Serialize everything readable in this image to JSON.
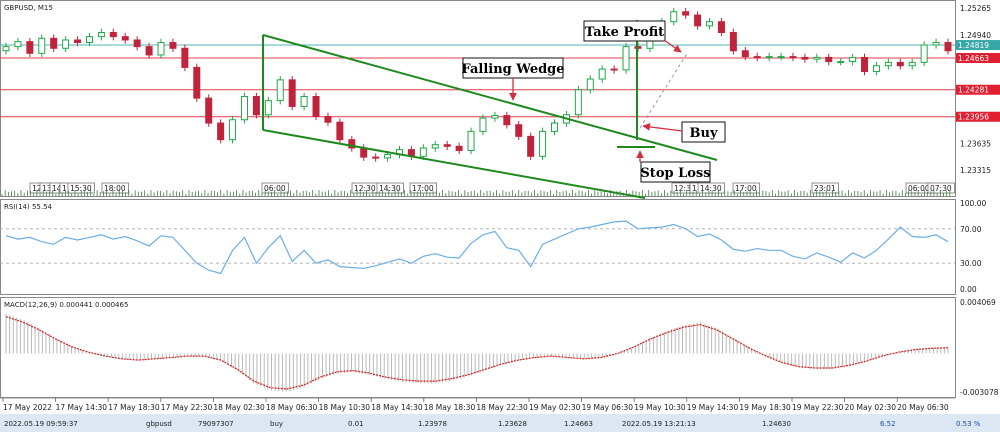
{
  "window": {
    "title": "GBPUSD, M15"
  },
  "colors": {
    "bull": "#20a848",
    "bear": "#c0243c",
    "wedge": "#1e8a1e",
    "level_red": "#e0404a",
    "level_teal": "#4fb7b7",
    "rsi_line": "#6aaee6",
    "macd_signal": "#d02020",
    "macd_hist": "#b9b9b9",
    "arrow": "#d03040",
    "tag_red": "#e02030",
    "tag_teal": "#37a7a7"
  },
  "price_axis": {
    "ticks": [
      "1.25265",
      "1.24940",
      "1.23635",
      "1.23315"
    ],
    "tick_values": [
      1.25265,
      1.2494,
      1.23635,
      1.23315
    ],
    "levels": [
      {
        "label": "1.24819",
        "value": 1.24819,
        "kind": "teal"
      },
      {
        "label": "1.24663",
        "value": 1.24663,
        "kind": "red"
      },
      {
        "label": "1.24281",
        "value": 1.24281,
        "kind": "red"
      },
      {
        "label": "1.23956",
        "value": 1.23956,
        "kind": "red"
      }
    ]
  },
  "session_tags": [
    "12",
    "13",
    "14",
    "1",
    "15:30",
    "18:00",
    "06:00",
    "12:30",
    "14:30",
    "17:00",
    "12:30",
    "1",
    "14:30",
    "17:00",
    "23:01",
    "06:00",
    "07:30"
  ],
  "annotations": {
    "take_profit": "Take Profit",
    "falling_wedge": "Falling Wedge",
    "buy": "Buy",
    "stop_loss": "Stop Loss"
  },
  "rsi": {
    "label": "RSI(14) 55.54",
    "ticks": [
      "100.00",
      "70.00",
      "30.00",
      "0.00"
    ],
    "tick_values": [
      100,
      70,
      30,
      0
    ]
  },
  "macd": {
    "label": "MACD(12,26,9) 0.000441 0.000465",
    "ticks": [
      "0.004069",
      "-0.003078"
    ],
    "tick_values": [
      0.004069,
      -0.003078
    ]
  },
  "time_axis": [
    "17 May 2022",
    "17 May 14:30",
    "17 May 18:30",
    "17 May 22:30",
    "18 May 02:30",
    "18 May 06:30",
    "18 May 10:30",
    "18 May 14:30",
    "18 May 18:30",
    "18 May 22:30",
    "19 May 02:30",
    "19 May 06:30",
    "19 May 10:30",
    "19 May 14:30",
    "19 May 18:30",
    "19 May 22:30",
    "20 May 02:30",
    "20 May 06:30"
  ],
  "trade_row": {
    "time": "2022.05.19 09:59:37",
    "symbol": "gbpusd",
    "ticket": "79097307",
    "type": "buy",
    "volume": "0.01",
    "open_price": "1.23978",
    "sl": "1.23628",
    "tp": "1.24663",
    "close_time": "2022.05.19 13:21:13",
    "close_price": "1.24630",
    "profit": "6.52",
    "percent": "0.53 %"
  },
  "chart_data": [
    {
      "type": "candlestick",
      "title": "GBPUSD, M15",
      "ylim": [
        1.2325,
        1.2532
      ],
      "series": [
        {
          "name": "GBPUSD",
          "close": [
            1.248,
            1.2486,
            1.2472,
            1.249,
            1.2478,
            1.2488,
            1.2485,
            1.2492,
            1.2497,
            1.2492,
            1.2488,
            1.248,
            1.247,
            1.2485,
            1.2478,
            1.2455,
            1.2418,
            1.2388,
            1.2368,
            1.2392,
            1.242,
            1.2398,
            1.2415,
            1.244,
            1.2408,
            1.242,
            1.2396,
            1.2389,
            1.2368,
            1.2358,
            1.2347,
            1.2346,
            1.235,
            1.2356,
            1.2348,
            1.2358,
            1.2362,
            1.236,
            1.2355,
            1.2378,
            1.2394,
            1.2397,
            1.2386,
            1.2372,
            1.2348,
            1.2378,
            1.2388,
            1.2398,
            1.2428,
            1.2441,
            1.2453,
            1.2452,
            1.248,
            1.2478,
            1.25,
            1.251,
            1.2522,
            1.2518,
            1.2505,
            1.251,
            1.2497,
            1.2475,
            1.2468,
            1.2467,
            1.2468,
            1.2468,
            1.2467,
            1.2465,
            1.2467,
            1.2462,
            1.2462,
            1.2467,
            1.245,
            1.2457,
            1.2461,
            1.2457,
            1.2461,
            1.2482,
            1.2485,
            1.2475
          ]
        }
      ]
    },
    {
      "type": "line",
      "title": "RSI(14) 55.54",
      "ylim": [
        0,
        100
      ],
      "series": [
        {
          "name": "RSI(14)",
          "values": [
            62,
            58,
            60,
            55,
            52,
            60,
            57,
            60,
            63,
            58,
            61,
            56,
            50,
            62,
            60,
            45,
            30,
            22,
            18,
            45,
            60,
            30,
            48,
            62,
            32,
            45,
            30,
            34,
            26,
            25,
            24,
            27,
            31,
            35,
            30,
            38,
            41,
            37,
            36,
            53,
            63,
            67,
            48,
            45,
            26,
            52,
            58,
            64,
            70,
            72,
            75,
            78,
            79,
            70,
            71,
            72,
            75,
            70,
            61,
            64,
            57,
            46,
            44,
            47,
            45,
            45,
            38,
            35,
            42,
            37,
            31,
            42,
            36,
            45,
            58,
            72,
            61,
            60,
            63,
            55
          ]
        }
      ]
    },
    {
      "type": "line",
      "title": "MACD(12,26,9) 0.000441 0.000465",
      "ylim": [
        -0.003078,
        0.004069
      ],
      "series": [
        {
          "name": "MACD(12,26,9)",
          "values": [
            0.0028,
            0.0024,
            0.0018,
            0.0011,
            0.0005,
            0.0001,
            -0.0002,
            -0.0004,
            -0.0005,
            -0.0004,
            -0.0003,
            -0.0002,
            -0.0002,
            -0.0005,
            -0.0012,
            -0.0021,
            -0.0026,
            -0.0027,
            -0.0024,
            -0.0018,
            -0.0014,
            -0.0013,
            -0.0015,
            -0.0018,
            -0.002,
            -0.0021,
            -0.0021,
            -0.0019,
            -0.0016,
            -0.0012,
            -0.0008,
            -0.0005,
            -0.0003,
            -0.0002,
            -0.0003,
            -0.0004,
            -0.0003,
            0.0,
            0.0005,
            0.0011,
            0.0016,
            0.002,
            0.0022,
            0.0018,
            0.0011,
            0.0004,
            -0.0002,
            -0.0007,
            -0.001,
            -0.0011,
            -0.0011,
            -0.0009,
            -0.0006,
            -0.0002,
            0.0001,
            0.0003,
            0.0004,
            0.00044
          ]
        }
      ]
    }
  ]
}
